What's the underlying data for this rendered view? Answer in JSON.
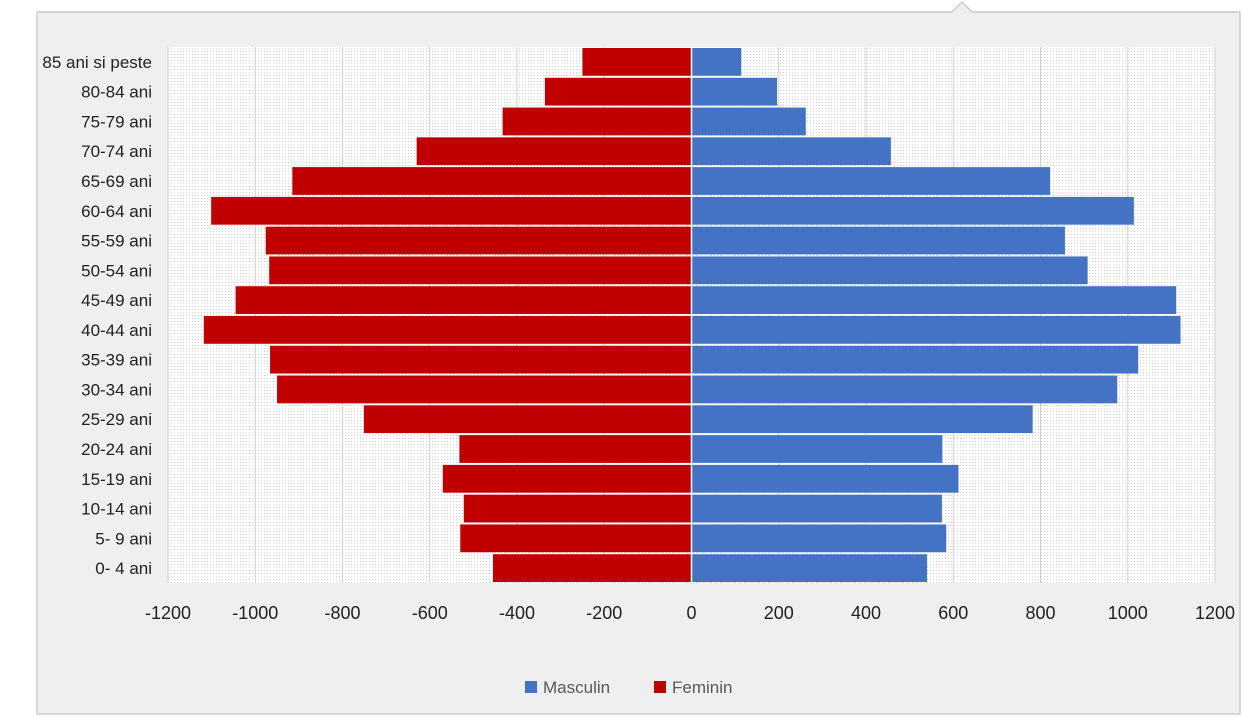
{
  "chart_data": {
    "type": "bar",
    "orientation": "horizontal",
    "stacked": "population-pyramid",
    "categories": [
      "85 ani si peste",
      "80-84 ani",
      "75-79 ani",
      "70-74 ani",
      "65-69 ani",
      "60-64 ani",
      "55-59 ani",
      "50-54 ani",
      "45-49 ani",
      "40-44 ani",
      "35-39 ani",
      "30-34 ani",
      "25-29 ani",
      "20-24 ani",
      "15-19 ani",
      "10-14 ani",
      "5- 9 ani",
      "0- 4 ani"
    ],
    "series": [
      {
        "name": "Masculin",
        "color": "#4472C4",
        "values": [
          114,
          196,
          262,
          457,
          822,
          1014,
          856,
          908,
          1111,
          1121,
          1024,
          976,
          782,
          575,
          612,
          574,
          584,
          540
        ]
      },
      {
        "name": "Feminin",
        "color": "#C00000",
        "values": [
          -250,
          -336,
          -433,
          -630,
          -915,
          -1101,
          -976,
          -968,
          -1045,
          -1118,
          -966,
          -950,
          -751,
          -532,
          -570,
          -522,
          -530,
          -455
        ]
      }
    ],
    "xlim": [
      -1200,
      1200
    ],
    "xticks": [
      -1200,
      -1000,
      -800,
      -600,
      -400,
      -200,
      0,
      200,
      400,
      600,
      800,
      1000,
      1200
    ],
    "grid": true,
    "legend_position": "bottom"
  },
  "legend": {
    "masculin": "Masculin",
    "feminin": "Feminin"
  }
}
